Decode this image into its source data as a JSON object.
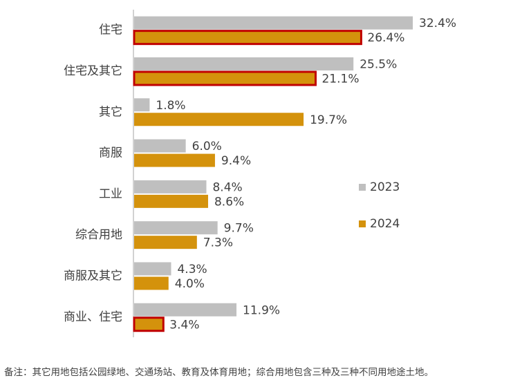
{
  "chart_data": {
    "type": "hbar",
    "categories": [
      "住宅",
      "住宅及其它",
      "其它",
      "商服",
      "工业",
      "综合用地",
      "商服及其它",
      "商业、住宅"
    ],
    "series": [
      {
        "name": "2023",
        "color": "#bfbfbf",
        "label_color": "#404040",
        "values": [
          32.4,
          25.5,
          1.8,
          6.0,
          8.4,
          9.7,
          4.3,
          11.9
        ],
        "value_labels": [
          "32.4%",
          "25.5%",
          "1.8%",
          "6.0%",
          "8.4%",
          "9.7%",
          "4.3%",
          "11.9%"
        ]
      },
      {
        "name": "2024",
        "color": "#d4920c",
        "label_color": "#d4920c",
        "values": [
          26.4,
          21.1,
          19.7,
          9.4,
          8.6,
          7.3,
          4.0,
          3.4
        ],
        "value_labels": [
          "26.4%",
          "21.1%",
          "19.7%",
          "9.4%",
          "8.6%",
          "7.3%",
          "4.0%",
          "3.4%"
        ],
        "outline_color": "#c00000",
        "outlined": [
          true,
          true,
          false,
          false,
          false,
          false,
          false,
          true
        ]
      }
    ],
    "note": "备注：其它用地包括公园绿地、交通场站、教育及体育用地；综合用地包含三种及三种不同用地途土地。"
  }
}
